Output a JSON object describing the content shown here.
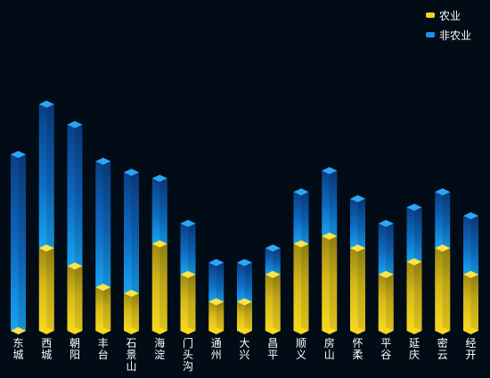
{
  "chart_data": {
    "type": "bar",
    "stacked": true,
    "style": "3d-cylinder",
    "categories": [
      "东城",
      "西城",
      "朝阳",
      "丰台",
      "石景山",
      "海淀",
      "门头沟",
      "通州",
      "大兴",
      "昌平",
      "顺义",
      "房山",
      "怀柔",
      "平谷",
      "延庆",
      "密云",
      "经开"
    ],
    "series": [
      {
        "name": "农业",
        "color": "#f2d11f",
        "values": [
          0,
          97,
          76,
          51,
          44,
          102,
          66,
          34,
          34,
          66,
          102,
          111,
          97,
          66,
          81,
          97,
          66
        ]
      },
      {
        "name": "非农业",
        "color": "#1596e8",
        "values": [
          207,
          169,
          166,
          148,
          142,
          77,
          60,
          46,
          46,
          31,
          61,
          77,
          58,
          60,
          64,
          66,
          69
        ]
      }
    ],
    "ylim": [
      0,
      270
    ],
    "grid": false,
    "legend_position": "top-right"
  },
  "legend": {
    "items": [
      {
        "label": "农业",
        "color": "#f2d11f"
      },
      {
        "label": "非农业",
        "color": "#1596e8"
      }
    ]
  }
}
